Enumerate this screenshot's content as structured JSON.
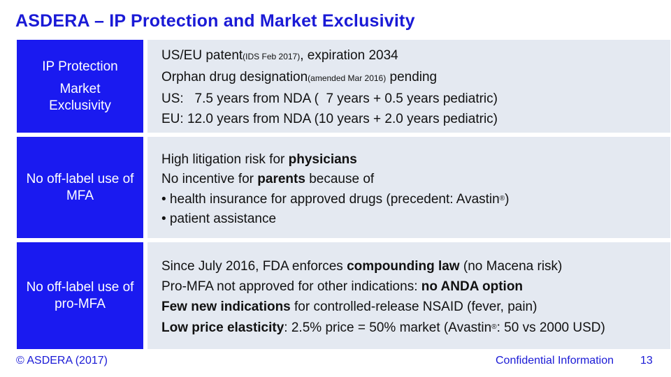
{
  "title": "ASDERA – IP Protection and Market Exclusivity",
  "colors": {
    "accent": "#1a1ad6",
    "label_bg": "#1a1af0",
    "content_bg": "#e4e9f1"
  },
  "rows": [
    {
      "labels": [
        "IP Protection",
        "Market Exclusivity"
      ],
      "lines": [
        {
          "a": "US/EU patent",
          "sub": "(IDS Feb 2017)",
          "b": ", expiration 2034"
        },
        {
          "a": "Orphan drug designation",
          "sub": "(amended Mar 2016)",
          "b": " pending"
        },
        {
          "text": "US:   7.5 years from NDA (  7 years + 0.5 years pediatric)"
        },
        {
          "text": "EU: 12.0 years from NDA (10 years + 2.0 years pediatric)"
        }
      ]
    },
    {
      "label": "No off-label use of MFA",
      "lines": [
        {
          "a": "High litigation risk for ",
          "bold": "physicians"
        },
        {
          "a": "No incentive for ",
          "bold": "parents",
          "b": " because of"
        },
        {
          "a": "• health insurance for approved drugs (precedent: Avastin",
          "reg": "®",
          "b": ")"
        },
        {
          "text": "• patient assistance"
        }
      ]
    },
    {
      "label": "No off-label use of pro-MFA",
      "lines": [
        {
          "a": "Since July 2016, FDA enforces ",
          "bold": "compounding law",
          "b": " (no Macena risk)"
        },
        {
          "a": "Pro-MFA not approved for other indications: ",
          "bold": "no ANDA option"
        },
        {
          "bold": "Few new indications",
          "b": " for controlled-release NSAID (fever, pain)"
        },
        {
          "bold": "Low price elasticity",
          "b": ": 2.5% price = 50% market (Avastin",
          "reg": "®",
          "c": ": 50 vs 2000 USD)"
        }
      ]
    }
  ],
  "footer": {
    "copyright": "© ASDERA (2017)",
    "confidential": "Confidential Information",
    "page": "13"
  }
}
